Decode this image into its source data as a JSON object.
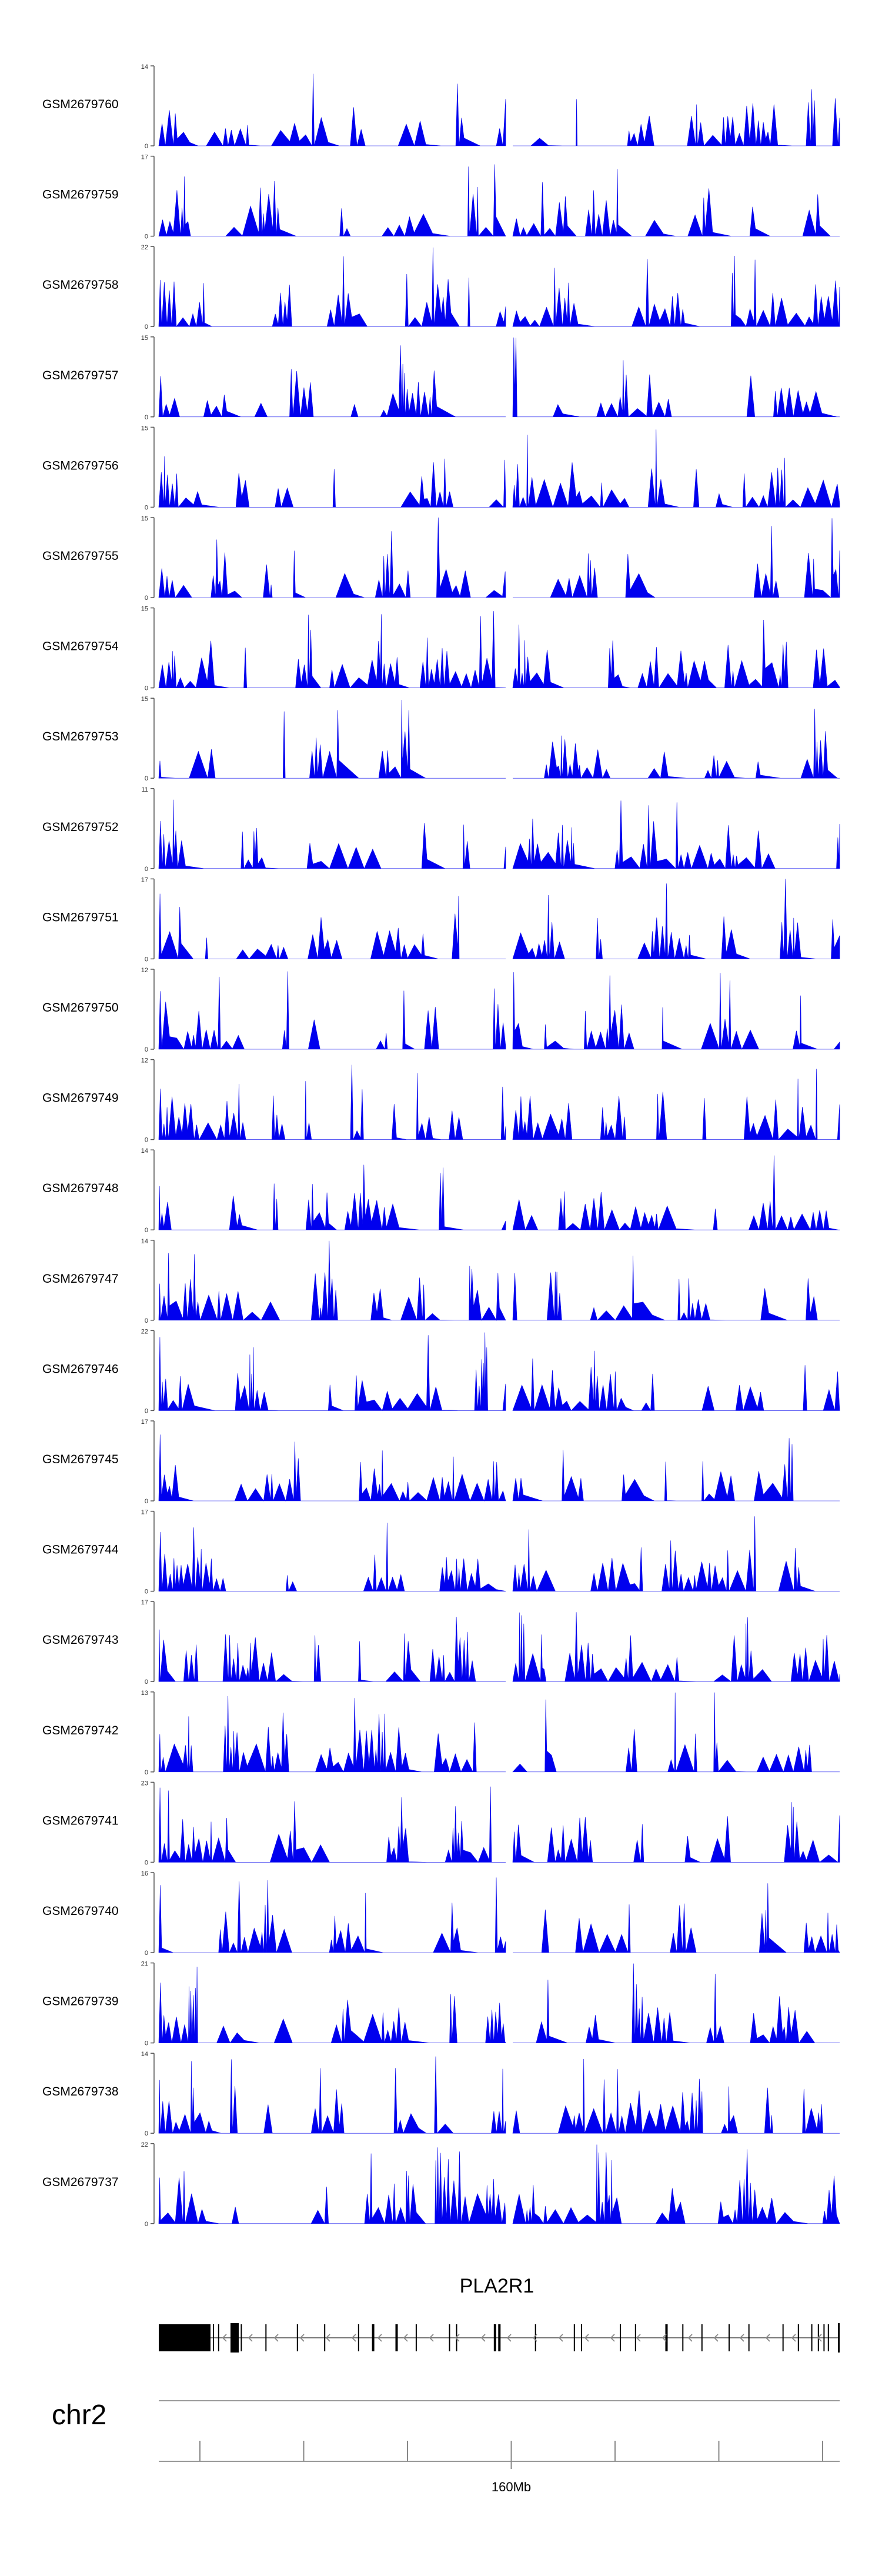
{
  "chart_data": {
    "type": "area",
    "title": "",
    "xlabel": "",
    "ylabel": "",
    "colors": {
      "track_fill": "#0000ee",
      "axis": "#555555",
      "gene": "#000000",
      "scale": "#888888"
    },
    "tracks": [
      {
        "name": "GSM2679760",
        "ymax": "14",
        "ymin": "0",
        "max": 14,
        "seed": 7601
      },
      {
        "name": "GSM2679759",
        "ymax": "17",
        "ymin": "0",
        "max": 17,
        "seed": 7592
      },
      {
        "name": "GSM2679758",
        "ymax": "22",
        "ymin": "0",
        "max": 22,
        "seed": 7583
      },
      {
        "name": "GSM2679757",
        "ymax": "15",
        "ymin": "0",
        "max": 15,
        "seed": 7574
      },
      {
        "name": "GSM2679756",
        "ymax": "15",
        "ymin": "0",
        "max": 15,
        "seed": 7565
      },
      {
        "name": "GSM2679755",
        "ymax": "15",
        "ymin": "0",
        "max": 15,
        "seed": 7556
      },
      {
        "name": "GSM2679754",
        "ymax": "15",
        "ymin": "0",
        "max": 15,
        "seed": 7547
      },
      {
        "name": "GSM2679753",
        "ymax": "15",
        "ymin": "0",
        "max": 15,
        "seed": 7538
      },
      {
        "name": "GSM2679752",
        "ymax": "11",
        "ymin": "0",
        "max": 11,
        "seed": 7529
      },
      {
        "name": "GSM2679751",
        "ymax": "17",
        "ymin": "0",
        "max": 17,
        "seed": 7511
      },
      {
        "name": "GSM2679750",
        "ymax": "12",
        "ymin": "0",
        "max": 12,
        "seed": 7502
      },
      {
        "name": "GSM2679749",
        "ymax": "12",
        "ymin": "0",
        "max": 12,
        "seed": 7493
      },
      {
        "name": "GSM2679748",
        "ymax": "14",
        "ymin": "0",
        "max": 14,
        "seed": 7484
      },
      {
        "name": "GSM2679747",
        "ymax": "14",
        "ymin": "0",
        "max": 14,
        "seed": 7475
      },
      {
        "name": "GSM2679746",
        "ymax": "22",
        "ymin": "0",
        "max": 22,
        "seed": 7466
      },
      {
        "name": "GSM2679745",
        "ymax": "17",
        "ymin": "0",
        "max": 17,
        "seed": 7457
      },
      {
        "name": "GSM2679744",
        "ymax": "17",
        "ymin": "0",
        "max": 17,
        "seed": 7448
      },
      {
        "name": "GSM2679743",
        "ymax": "17",
        "ymin": "0",
        "max": 17,
        "seed": 7439
      },
      {
        "name": "GSM2679742",
        "ymax": "13",
        "ymin": "0",
        "max": 13,
        "seed": 7421
      },
      {
        "name": "GSM2679741",
        "ymax": "23",
        "ymin": "0",
        "max": 23,
        "seed": 7412
      },
      {
        "name": "GSM2679740",
        "ymax": "16",
        "ymin": "0",
        "max": 16,
        "seed": 7403
      },
      {
        "name": "GSM2679739",
        "ymax": "21",
        "ymin": "0",
        "max": 21,
        "seed": 7394
      },
      {
        "name": "GSM2679738",
        "ymax": "14",
        "ymin": "0",
        "max": 14,
        "seed": 7385
      },
      {
        "name": "GSM2679737",
        "ymax": "22",
        "ymin": "0",
        "max": 22,
        "seed": 7376
      }
    ],
    "gene": {
      "name": "PLA2R1",
      "strand": "-"
    },
    "chromosome": "chr2",
    "axis": {
      "tick_label": "160Mb",
      "labeled_tick_index": 3,
      "tick_count": 7
    }
  }
}
